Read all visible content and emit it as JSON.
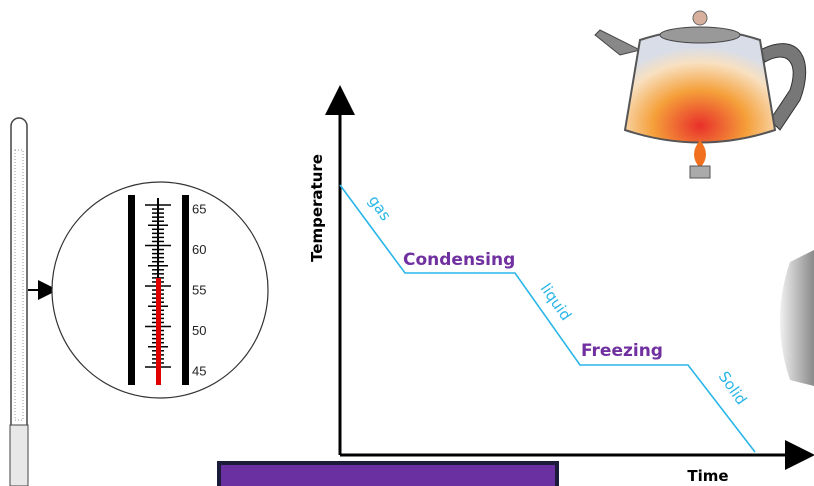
{
  "axes": {
    "y_label": "Temperature",
    "x_label": "Time"
  },
  "curve_labels": {
    "gas": "gas",
    "condensing": "Condensing",
    "liquid": "liquid",
    "freezing": "Freezing",
    "solid": "Solid"
  },
  "thermometer": {
    "scale_labels": [
      "65",
      "60",
      "55",
      "50",
      "45"
    ]
  }
}
